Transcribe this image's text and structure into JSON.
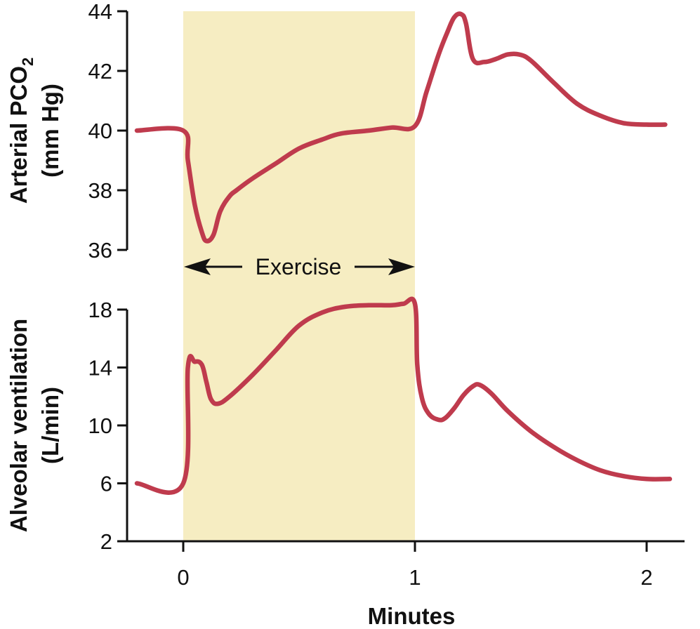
{
  "colors": {
    "line": "#BF3B4D",
    "exercise_band": "#F6EDC2",
    "axis": "#111111"
  },
  "chart_data": [
    {
      "type": "line",
      "panel": "top",
      "ylabel_main": "Arterial PCO",
      "ylabel_sub": "2",
      "ylabel_line2": "(mm Hg)",
      "ylim": [
        36,
        44
      ],
      "yticks": [
        "44",
        "42",
        "40",
        "38",
        "36"
      ],
      "xlim": [
        -0.25,
        2.1
      ],
      "series": [
        {
          "x": [
            -0.2,
            0.0,
            0.02,
            0.05,
            0.08,
            0.1,
            0.13,
            0.16,
            0.2,
            0.23,
            0.3,
            0.4,
            0.5,
            0.6,
            0.68,
            0.8,
            0.9,
            1.0,
            1.05,
            1.1,
            1.14,
            1.17,
            1.2,
            1.22,
            1.25,
            1.3,
            1.35,
            1.4,
            1.45,
            1.5,
            1.6,
            1.7,
            1.8,
            1.9,
            2.0,
            2.08
          ],
          "y": [
            40.0,
            40.0,
            39.0,
            37.5,
            36.6,
            36.3,
            36.5,
            37.3,
            37.8,
            38.0,
            38.4,
            38.9,
            39.4,
            39.7,
            39.9,
            40.0,
            40.1,
            40.15,
            41.3,
            42.5,
            43.3,
            43.8,
            43.9,
            43.6,
            42.4,
            42.3,
            42.4,
            42.55,
            42.55,
            42.35,
            41.6,
            40.9,
            40.5,
            40.25,
            40.2,
            40.2
          ]
        }
      ]
    },
    {
      "type": "line",
      "panel": "bottom",
      "ylabel_line1": "Alveolar ventilation",
      "ylabel_line2": "(L/min)",
      "ylim": [
        2,
        18
      ],
      "yticks": [
        "18",
        "14",
        "10",
        "6",
        "2"
      ],
      "xlim": [
        -0.25,
        2.1
      ],
      "xticks": [
        "0",
        "1",
        "2"
      ],
      "xlabel": "Minutes",
      "series": [
        {
          "x": [
            -0.2,
            0.0,
            0.02,
            0.05,
            0.08,
            0.1,
            0.12,
            0.15,
            0.2,
            0.3,
            0.4,
            0.5,
            0.6,
            0.7,
            0.8,
            0.9,
            0.95,
            1.0,
            1.01,
            1.03,
            1.06,
            1.1,
            1.13,
            1.17,
            1.21,
            1.25,
            1.28,
            1.33,
            1.4,
            1.5,
            1.6,
            1.7,
            1.8,
            1.9,
            2.0,
            2.1
          ],
          "y": [
            6.0,
            6.0,
            14.0,
            14.4,
            14.2,
            13.0,
            11.8,
            11.5,
            12.0,
            13.5,
            15.2,
            16.9,
            17.8,
            18.2,
            18.3,
            18.3,
            18.4,
            18.4,
            14.2,
            11.9,
            10.8,
            10.4,
            10.5,
            11.2,
            12.1,
            12.7,
            12.8,
            12.2,
            11.0,
            9.6,
            8.5,
            7.6,
            6.9,
            6.5,
            6.3,
            6.3
          ]
        }
      ]
    }
  ],
  "exercise_band": {
    "label": "Exercise",
    "x_start": 0.0,
    "x_end": 1.0
  }
}
